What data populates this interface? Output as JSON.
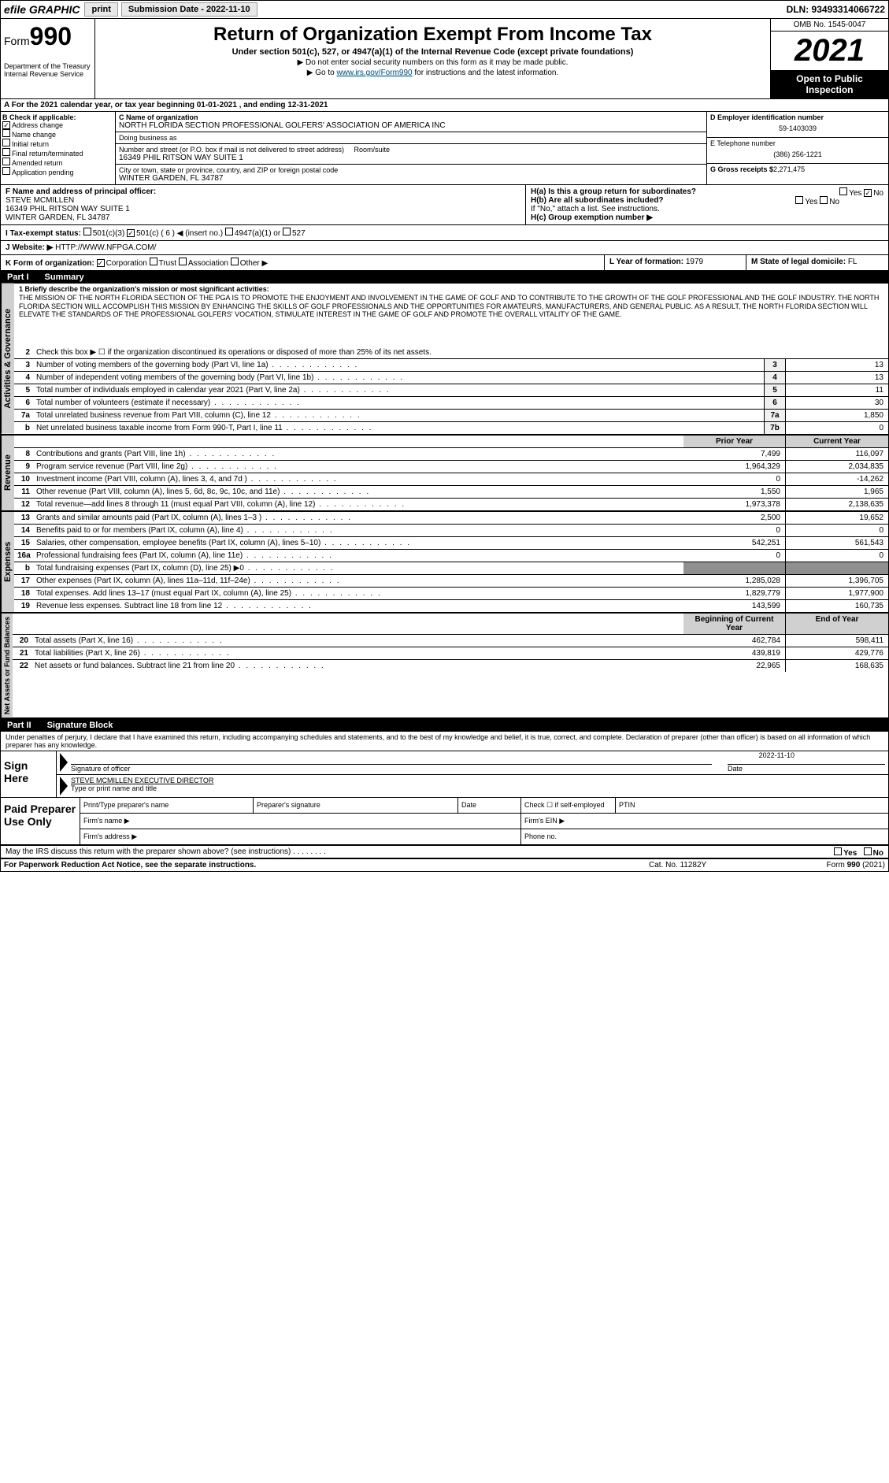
{
  "topbar": {
    "efile": "efile GRAPHIC",
    "print": "print",
    "sub_date_label": "Submission Date - 2022-11-10",
    "dln": "DLN: 93493314066722"
  },
  "header": {
    "form_label": "Form",
    "form_num": "990",
    "dept": "Department of the Treasury\nInternal Revenue Service",
    "title": "Return of Organization Exempt From Income Tax",
    "subtitle": "Under section 501(c), 527, or 4947(a)(1) of the Internal Revenue Code (except private foundations)",
    "line1": "▶ Do not enter social security numbers on this form as it may be made public.",
    "line2_pre": "▶ Go to ",
    "line2_link": "www.irs.gov/Form990",
    "line2_post": " for instructions and the latest information.",
    "omb": "OMB No. 1545-0047",
    "year": "2021",
    "open_pub": "Open to Public Inspection"
  },
  "row_a": "A For the 2021 calendar year, or tax year beginning 01-01-2021   , and ending 12-31-2021",
  "col_b": {
    "label": "B Check if applicable:",
    "addr_change": "Address change",
    "name_change": "Name change",
    "initial": "Initial return",
    "final": "Final return/terminated",
    "amended": "Amended return",
    "app_pending": "Application pending"
  },
  "col_c": {
    "c_label": "C Name of organization",
    "c_name": "NORTH FLORIDA SECTION PROFESSIONAL GOLFERS' ASSOCIATION OF AMERICA INC",
    "dba_label": "Doing business as",
    "addr_label": "Number and street (or P.O. box if mail is not delivered to street address)",
    "addr": "16349 PHIL RITSON WAY SUITE 1",
    "room_label": "Room/suite",
    "city_label": "City or town, state or province, country, and ZIP or foreign postal code",
    "city": "WINTER GARDEN, FL  34787"
  },
  "col_d": {
    "d_label": "D Employer identification number",
    "d_val": "59-1403039",
    "e_label": "E Telephone number",
    "e_val": "(386) 256-1221",
    "g_label": "G Gross receipts $",
    "g_val": "2,271,475"
  },
  "row_f": {
    "f_label": "F Name and address of principal officer:",
    "f_name": "STEVE MCMILLEN",
    "f_addr1": "16349 PHIL RITSON WAY SUITE 1",
    "f_addr2": "WINTER GARDEN, FL  34787"
  },
  "row_h": {
    "ha": "H(a)  Is this a group return for subordinates?",
    "hb": "H(b)  Are all subordinates included?",
    "hb_note": "If \"No,\" attach a list. See instructions.",
    "hc": "H(c)  Group exemption number ▶",
    "yes": "Yes",
    "no": "No"
  },
  "row_i": {
    "label": "I  Tax-exempt status:",
    "c3": "501(c)(3)",
    "c": "501(c) ( 6 ) ◀ (insert no.)",
    "a1": "4947(a)(1) or",
    "527": "527"
  },
  "row_j": {
    "label": "J  Website: ▶",
    "val": "HTTP://WWW.NFPGA.COM/"
  },
  "row_k": {
    "label": "K Form of organization:",
    "corp": "Corporation",
    "trust": "Trust",
    "assoc": "Association",
    "other": "Other ▶"
  },
  "row_l": {
    "label": "L Year of formation:",
    "val": "1979"
  },
  "row_m": {
    "label": "M State of legal domicile:",
    "val": "FL"
  },
  "part1": {
    "num": "Part I",
    "title": "Summary"
  },
  "mission_label": "1    Briefly describe the organization's mission or most significant activities:",
  "mission": "THE MISSION OF THE NORTH FLORIDA SECTION OF THE PGA IS TO PROMOTE THE ENJOYMENT AND INVOLVEMENT IN THE GAME OF GOLF AND TO CONTRIBUTE TO THE GROWTH OF THE GOLF PROFESSIONAL AND THE GOLF INDUSTRY. THE NORTH FLORIDA SECTION WILL ACCOMPLISH THIS MISSION BY ENHANCING THE SKILLS OF GOLF PROFESSIONALS AND THE OPPORTUNITIES FOR AMATEURS, MANUFACTURERS, AND GENERAL PUBLIC. AS A RESULT, THE NORTH FLORIDA SECTION WILL ELEVATE THE STANDARDS OF THE PROFESSIONAL GOLFERS' VOCATION, STIMULATE INTEREST IN THE GAME OF GOLF AND PROMOTE THE OVERALL VITALITY OF THE GAME.",
  "line2": "Check this box ▶ ☐ if the organization discontinued its operations or disposed of more than 25% of its net assets.",
  "gov": {
    "label": "Activities & Governance",
    "lines": [
      {
        "n": "3",
        "t": "Number of voting members of the governing body (Part VI, line 1a)",
        "b": "3",
        "v": "13"
      },
      {
        "n": "4",
        "t": "Number of independent voting members of the governing body (Part VI, line 1b)",
        "b": "4",
        "v": "13"
      },
      {
        "n": "5",
        "t": "Total number of individuals employed in calendar year 2021 (Part V, line 2a)",
        "b": "5",
        "v": "11"
      },
      {
        "n": "6",
        "t": "Total number of volunteers (estimate if necessary)",
        "b": "6",
        "v": "30"
      },
      {
        "n": "7a",
        "t": "Total unrelated business revenue from Part VIII, column (C), line 12",
        "b": "7a",
        "v": "1,850"
      },
      {
        "n": "b",
        "t": "Net unrelated business taxable income from Form 990-T, Part I, line 11",
        "b": "7b",
        "v": "0"
      }
    ]
  },
  "col_hdrs": {
    "prior": "Prior Year",
    "current": "Current Year",
    "boy": "Beginning of Current Year",
    "eoy": "End of Year"
  },
  "rev": {
    "label": "Revenue",
    "lines": [
      {
        "n": "8",
        "t": "Contributions and grants (Part VIII, line 1h)",
        "p": "7,499",
        "c": "116,097"
      },
      {
        "n": "9",
        "t": "Program service revenue (Part VIII, line 2g)",
        "p": "1,964,329",
        "c": "2,034,835"
      },
      {
        "n": "10",
        "t": "Investment income (Part VIII, column (A), lines 3, 4, and 7d )",
        "p": "0",
        "c": "-14,262"
      },
      {
        "n": "11",
        "t": "Other revenue (Part VIII, column (A), lines 5, 6d, 8c, 9c, 10c, and 11e)",
        "p": "1,550",
        "c": "1,965"
      },
      {
        "n": "12",
        "t": "Total revenue—add lines 8 through 11 (must equal Part VIII, column (A), line 12)",
        "p": "1,973,378",
        "c": "2,138,635"
      }
    ]
  },
  "exp": {
    "label": "Expenses",
    "lines": [
      {
        "n": "13",
        "t": "Grants and similar amounts paid (Part IX, column (A), lines 1–3 )",
        "p": "2,500",
        "c": "19,652"
      },
      {
        "n": "14",
        "t": "Benefits paid to or for members (Part IX, column (A), line 4)",
        "p": "0",
        "c": "0"
      },
      {
        "n": "15",
        "t": "Salaries, other compensation, employee benefits (Part IX, column (A), lines 5–10)",
        "p": "542,251",
        "c": "561,543"
      },
      {
        "n": "16a",
        "t": "Professional fundraising fees (Part IX, column (A), line 11e)",
        "p": "0",
        "c": "0"
      },
      {
        "n": "b",
        "t": "Total fundraising expenses (Part IX, column (D), line 25) ▶0",
        "p": "",
        "c": "",
        "shade": true
      },
      {
        "n": "17",
        "t": "Other expenses (Part IX, column (A), lines 11a–11d, 11f–24e)",
        "p": "1,285,028",
        "c": "1,396,705"
      },
      {
        "n": "18",
        "t": "Total expenses. Add lines 13–17 (must equal Part IX, column (A), line 25)",
        "p": "1,829,779",
        "c": "1,977,900"
      },
      {
        "n": "19",
        "t": "Revenue less expenses. Subtract line 18 from line 12",
        "p": "143,599",
        "c": "160,735"
      }
    ]
  },
  "net": {
    "label": "Net Assets or Fund Balances",
    "lines": [
      {
        "n": "20",
        "t": "Total assets (Part X, line 16)",
        "p": "462,784",
        "c": "598,411"
      },
      {
        "n": "21",
        "t": "Total liabilities (Part X, line 26)",
        "p": "439,819",
        "c": "429,776"
      },
      {
        "n": "22",
        "t": "Net assets or fund balances. Subtract line 21 from line 20",
        "p": "22,965",
        "c": "168,635"
      }
    ]
  },
  "part2": {
    "num": "Part II",
    "title": "Signature Block"
  },
  "penalty": "Under penalties of perjury, I declare that I have examined this return, including accompanying schedules and statements, and to the best of my knowledge and belief, it is true, correct, and complete. Declaration of preparer (other than officer) is based on all information of which preparer has any knowledge.",
  "sign": {
    "here": "Sign Here",
    "sig_officer": "Signature of officer",
    "date": "Date",
    "date_val": "2022-11-10",
    "name": "STEVE MCMILLEN  EXECUTIVE DIRECTOR",
    "name_label": "Type or print name and title"
  },
  "paid": {
    "label": "Paid Preparer Use Only",
    "print_name": "Print/Type preparer's name",
    "prep_sig": "Preparer's signature",
    "date": "Date",
    "check_self": "Check ☐ if self-employed",
    "ptin": "PTIN",
    "firm_name": "Firm's name  ▶",
    "firm_ein": "Firm's EIN ▶",
    "firm_addr": "Firm's address ▶",
    "phone": "Phone no."
  },
  "bottom": {
    "may_irs": "May the IRS discuss this return with the preparer shown above? (see instructions)",
    "yes": "Yes",
    "no": "No",
    "pra": "For Paperwork Reduction Act Notice, see the separate instructions.",
    "cat": "Cat. No. 11282Y",
    "form": "Form 990 (2021)"
  }
}
